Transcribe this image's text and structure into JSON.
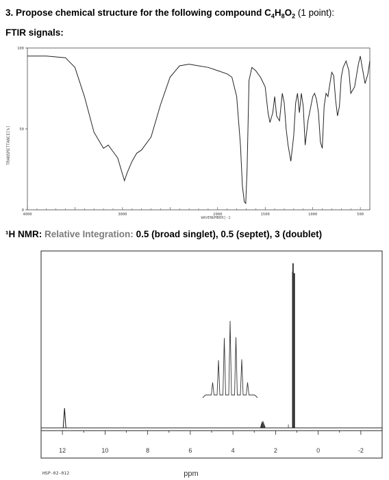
{
  "question": {
    "number": "3.",
    "text_before": "Propose chemical structure for the following compound ",
    "formula_c": "C",
    "formula_c_sub": "4",
    "formula_h": "H",
    "formula_h_sub": "8",
    "formula_o": "O",
    "formula_o_sub": "2",
    "points": "(1 point):"
  },
  "ftir": {
    "section_label": "FTIR signals:",
    "y_axis_label": "TRANSMITTANCE[%]",
    "x_axis_label": "WAVENUMBER[-1",
    "y_ticks": [
      "100",
      "50",
      "0"
    ],
    "x_ticks": [
      "4000",
      "3000",
      "2000",
      "1500",
      "1000",
      "500"
    ]
  },
  "nmr": {
    "label_prefix": "¹H NMR:",
    "label_integration": "Relative Integration:",
    "label_values": "0.5 (broad singlet), 0.5 (septet), 3 (doublet)",
    "x_ticks": [
      "12",
      "10",
      "8",
      "6",
      "4",
      "2",
      "0",
      "-2"
    ],
    "x_axis_label": "ppm",
    "spectrum_id": "HSP-02-012"
  },
  "chart_data": [
    {
      "type": "line",
      "title": "",
      "xlabel": "WAVENUMBER[-1",
      "ylabel": "TRANSMITTANCE[%]",
      "xlim": [
        4000,
        400
      ],
      "ylim": [
        0,
        100
      ],
      "series": [
        {
          "x": [
            4000,
            3800,
            3600,
            3500,
            3400,
            3300,
            3200,
            3150,
            3100,
            3050,
            3000,
            2980,
            2950,
            2900,
            2850,
            2800,
            2700,
            2600,
            2500,
            2400,
            2300,
            2200,
            2100,
            2000,
            1900,
            1850,
            1800,
            1760,
            1740,
            1720,
            1705,
            1690,
            1670,
            1640,
            1600,
            1550,
            1500,
            1470,
            1450,
            1420,
            1400,
            1380,
            1350,
            1320,
            1300,
            1280,
            1260,
            1230,
            1200,
            1180,
            1160,
            1140,
            1120,
            1100,
            1080,
            1050,
            1000,
            980,
            960,
            940,
            920,
            900,
            880,
            860,
            840,
            820,
            800,
            780,
            760,
            740,
            720,
            700,
            680,
            650,
            620,
            600,
            560,
            520,
            500,
            480,
            450,
            420,
            400
          ],
          "y": [
            95,
            95,
            94,
            88,
            70,
            48,
            38,
            40,
            36,
            32,
            22,
            18,
            23,
            30,
            35,
            37,
            45,
            65,
            82,
            89,
            90,
            89,
            88,
            86,
            84,
            82,
            70,
            40,
            15,
            5,
            4,
            25,
            80,
            88,
            86,
            82,
            76,
            60,
            54,
            60,
            70,
            58,
            55,
            72,
            66,
            50,
            40,
            30,
            46,
            66,
            72,
            60,
            72,
            64,
            40,
            55,
            70,
            72,
            68,
            60,
            42,
            38,
            64,
            72,
            70,
            78,
            85,
            83,
            68,
            58,
            64,
            82,
            88,
            92,
            86,
            72,
            76,
            90,
            95,
            88,
            78,
            84,
            92
          ]
        }
      ]
    },
    {
      "type": "line",
      "title": "",
      "xlabel": "ppm",
      "ylabel": "",
      "xlim": [
        13,
        -3
      ],
      "series": [
        {
          "x": [
            11.9,
            2.6,
            1.18,
            1.12
          ],
          "y": [
            0.12,
            0.04,
            1.0,
            1.0
          ]
        }
      ]
    }
  ]
}
